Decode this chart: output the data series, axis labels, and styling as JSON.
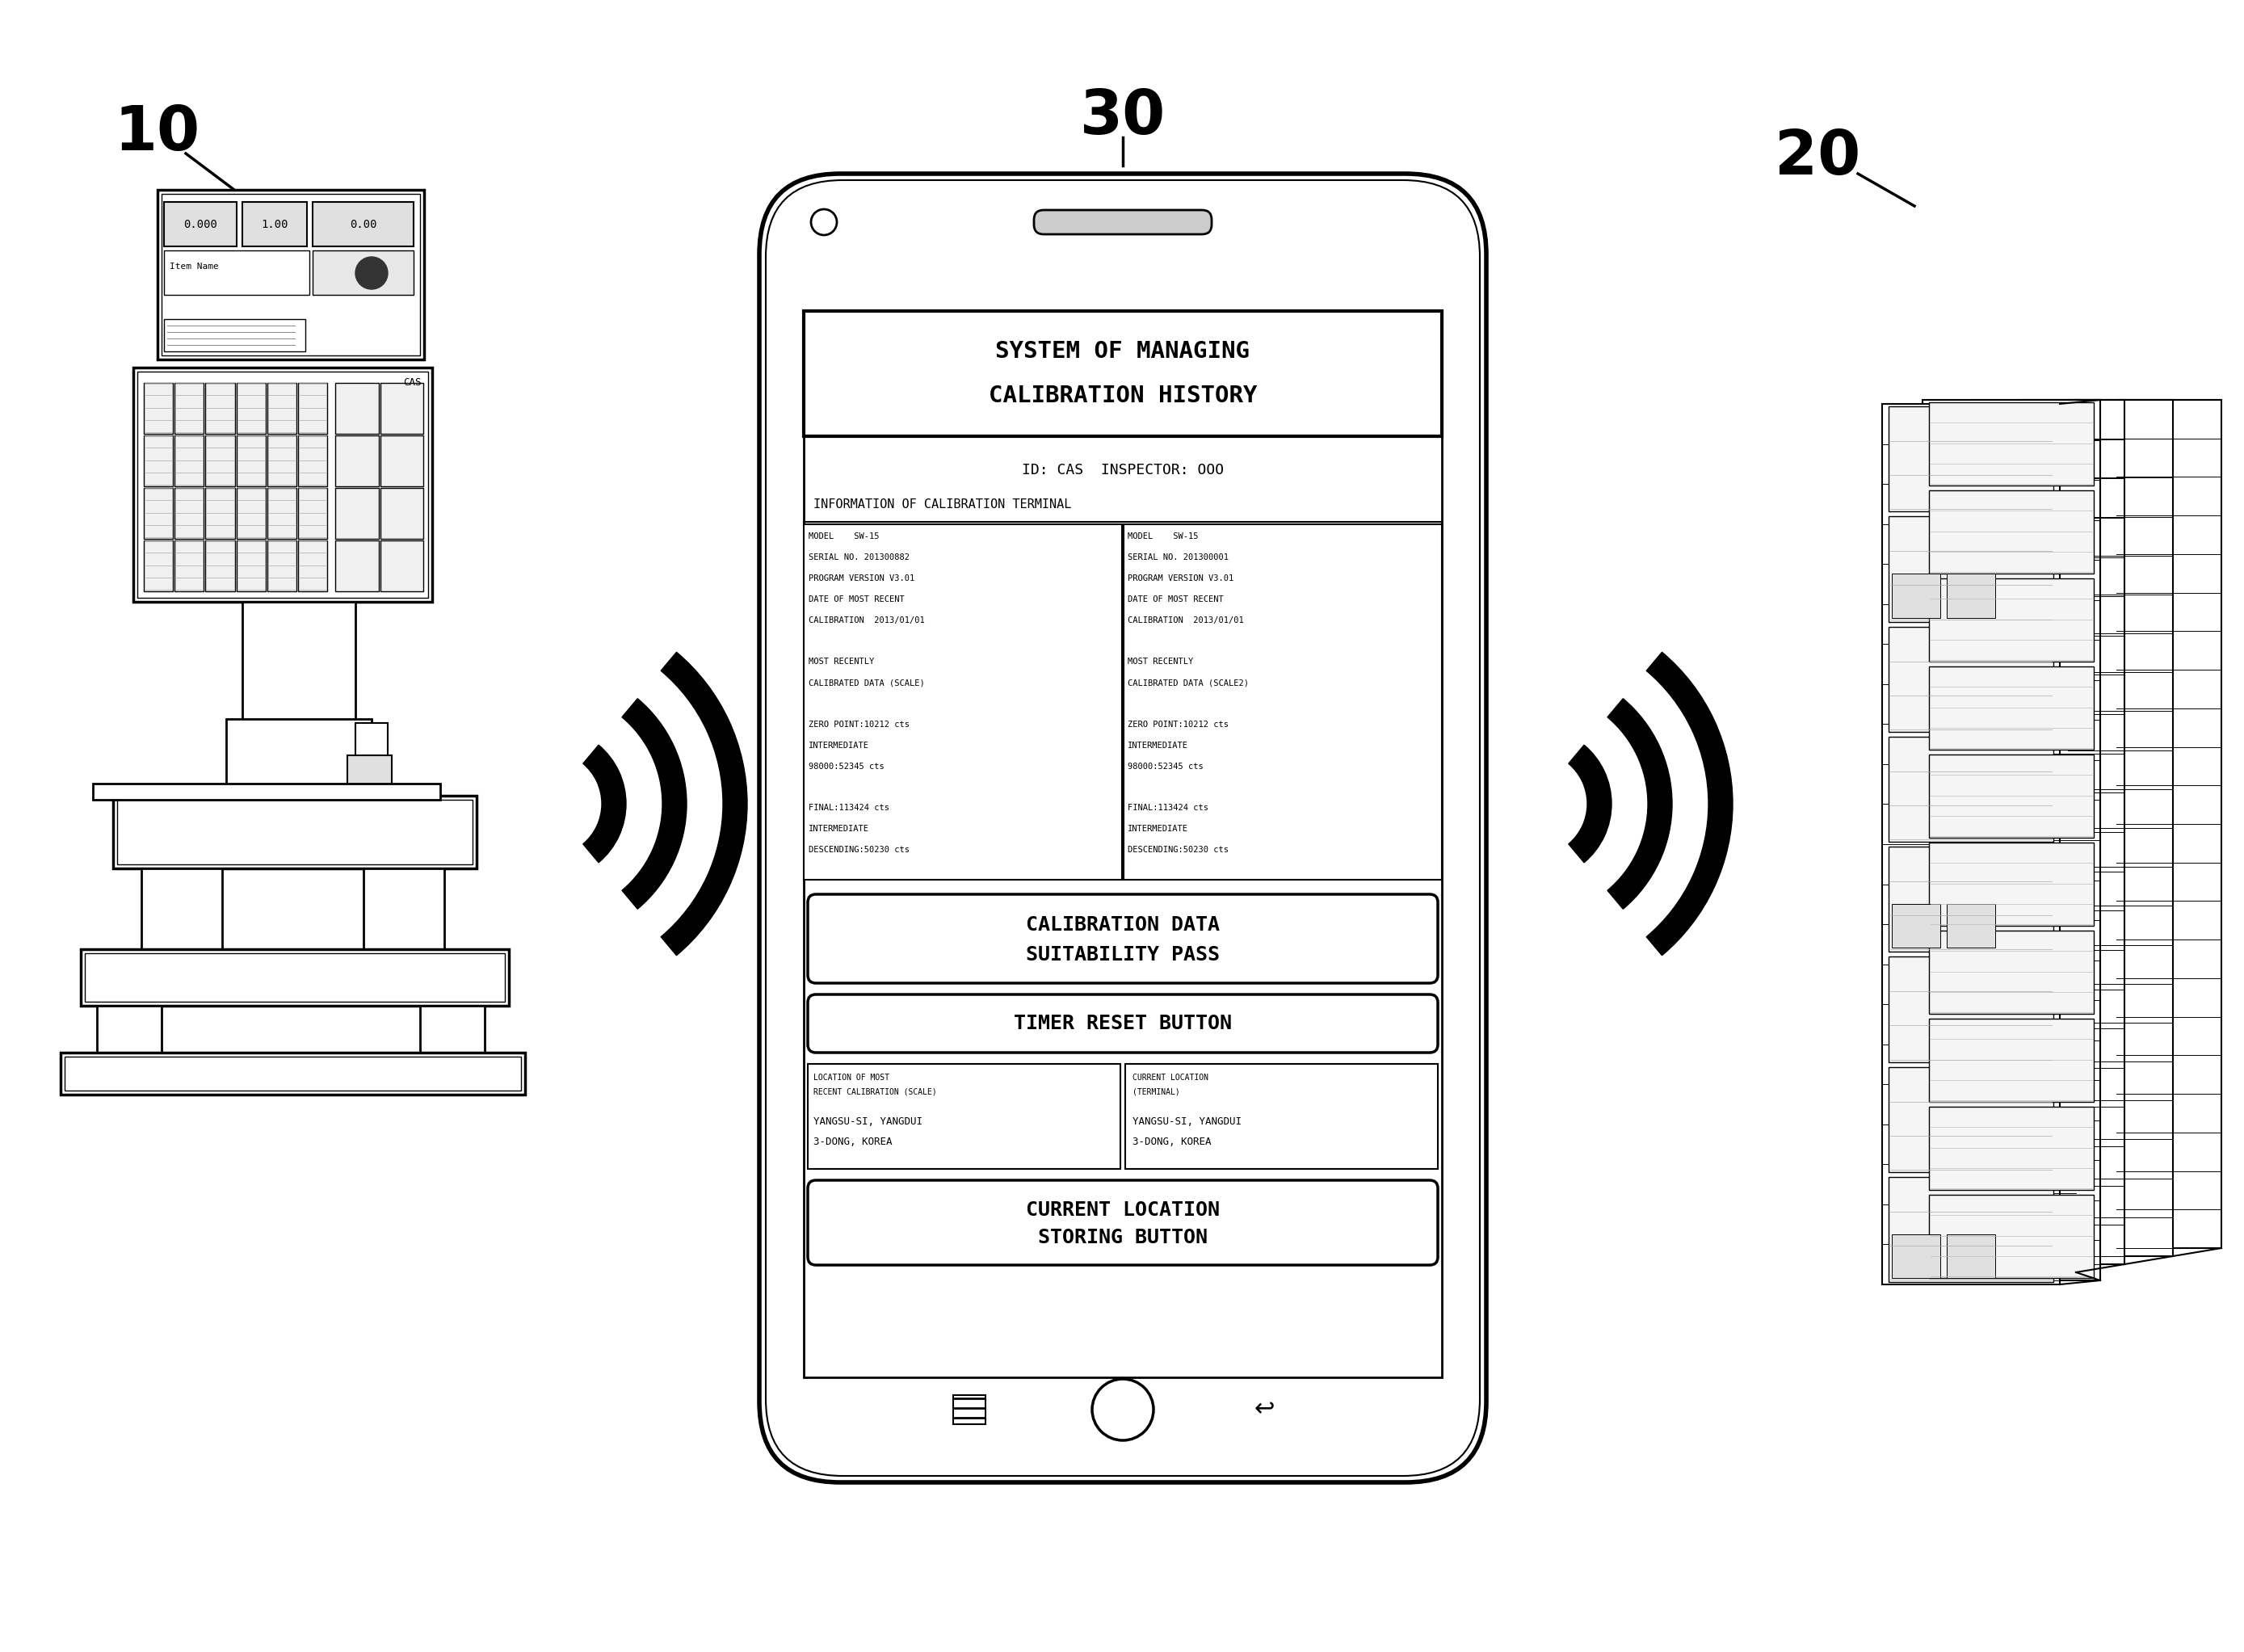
{
  "bg_color": "#ffffff",
  "line_color": "#000000",
  "label_10": "10",
  "label_20": "20",
  "label_30": "30",
  "phone_title_line1": "SYSTEM OF MANAGING",
  "phone_title_line2": "CALIBRATION HISTORY",
  "phone_id_line": "ID: CAS  INSPECTOR: OOO",
  "phone_info_header": "INFORMATION OF CALIBRATION TERMINAL",
  "btn_calib_1": "CALIBRATION DATA",
  "btn_calib_2": "SUITABILITY PASS",
  "btn_timer": "TIMER RESET BUTTON",
  "btn_current_1": "CURRENT LOCATION",
  "btn_current_2": "STORING BUTTON",
  "loc_left_h1": "LOCATION OF MOST",
  "loc_left_h2": "RECENT CALIBRATION (SCALE)",
  "loc_left_b1": "YANGSU-SI, YANGDUI",
  "loc_left_b2": "3-DONG, KOREA",
  "loc_right_h1": "CURRENT LOCATION",
  "loc_right_h2": "(TERMINAL)",
  "loc_right_b1": "YANGSU-SI, YANGDUI",
  "loc_right_b2": "3-DONG, KOREA"
}
